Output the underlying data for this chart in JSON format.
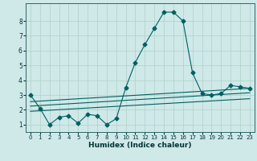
{
  "xlabel": "Humidex (Indice chaleur)",
  "bg_color": "#cfe8e8",
  "grid_color": "#b0d0c8",
  "line_color": "#006060",
  "xlim": [
    -0.5,
    23.5
  ],
  "ylim": [
    0.5,
    9.2
  ],
  "xticks": [
    0,
    1,
    2,
    3,
    4,
    5,
    6,
    7,
    8,
    9,
    10,
    11,
    12,
    13,
    14,
    15,
    16,
    17,
    18,
    19,
    20,
    21,
    22,
    23
  ],
  "yticks": [
    1,
    2,
    3,
    4,
    5,
    6,
    7,
    8
  ],
  "line1_x": [
    0,
    1,
    2,
    3,
    4,
    5,
    6,
    7,
    8,
    9,
    10,
    11,
    12,
    13,
    14,
    15,
    16,
    17,
    18,
    19,
    20,
    21,
    22,
    23
  ],
  "line1_y": [
    3.0,
    2.1,
    1.0,
    1.5,
    1.6,
    1.1,
    1.7,
    1.6,
    1.0,
    1.4,
    3.5,
    5.2,
    6.4,
    7.5,
    8.6,
    8.6,
    8.0,
    4.5,
    3.1,
    3.0,
    3.1,
    3.65,
    3.55,
    3.45
  ],
  "line2_x": [
    0,
    23
  ],
  "line2_y": [
    2.55,
    3.45
  ],
  "line3_x": [
    0,
    23
  ],
  "line3_y": [
    2.25,
    3.15
  ],
  "line4_x": [
    0,
    23
  ],
  "line4_y": [
    1.9,
    2.75
  ]
}
